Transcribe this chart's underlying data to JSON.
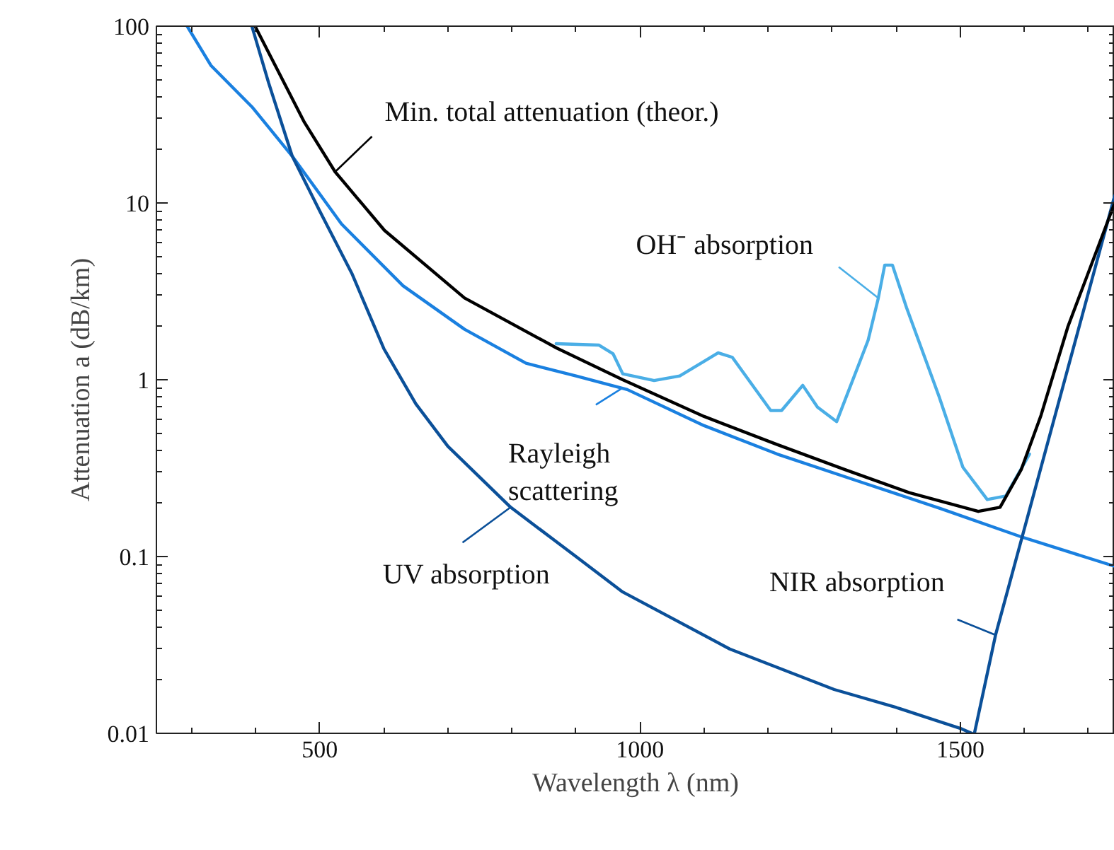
{
  "chart_data": {
    "type": "line",
    "xlabel": "Wavelength λ (nm)",
    "ylabel": "Attenuation a (dB/km)",
    "log": "y",
    "grid": false,
    "line_style": "solid",
    "marker": "none",
    "xlim": [
      245,
      1741
    ],
    "ylim": [
      0.01,
      100
    ],
    "xticks": [
      {
        "value": 300,
        "label": null
      },
      {
        "value": 400,
        "label": null
      },
      500,
      {
        "value": 600,
        "label": null
      },
      {
        "value": 700,
        "label": null
      },
      {
        "value": 800,
        "label": null
      },
      {
        "value": 900,
        "label": null
      },
      1000,
      {
        "value": 1100,
        "label": null
      },
      {
        "value": 1200,
        "label": null
      },
      {
        "value": 1300,
        "label": null
      },
      {
        "value": 1400,
        "label": null
      },
      1500,
      {
        "value": 1600,
        "label": null
      },
      {
        "value": 1700,
        "label": null
      }
    ],
    "yticks": [
      0.01,
      0.1,
      1,
      10,
      100
    ],
    "series": [
      {
        "color": "#1a80e0",
        "x": [
          293,
          330,
          394,
          457,
          534,
          630,
          726,
          822,
          900,
          980,
          1100,
          1214,
          1350,
          1469,
          1593,
          1741
        ],
        "values": [
          100,
          60,
          35,
          18.4,
          7.6,
          3.4,
          1.93,
          1.24,
          1.05,
          0.88,
          0.55,
          0.38,
          0.26,
          0.187,
          0.13,
          0.088
        ]
      },
      {
        "color": "#0b5099",
        "x": [
          394,
          420,
          457,
          500,
          550,
          600,
          650,
          700,
          798,
          900,
          973,
          1140,
          1303,
          1400,
          1502,
          1518
        ],
        "values": [
          100,
          48,
          18.4,
          9,
          4,
          1.5,
          0.73,
          0.42,
          0.19,
          0.1,
          0.063,
          0.03,
          0.0177,
          0.014,
          0.0106,
          0.01
        ]
      },
      {
        "color": "#0b5099",
        "x": [
          1522,
          1555,
          1741
        ],
        "values": [
          0.01,
          0.036,
          11
        ]
      },
      {
        "color": "#4aaee6",
        "x": [
          869,
          936,
          958,
          973,
          1022,
          1062,
          1122,
          1144,
          1204,
          1221,
          1254,
          1277,
          1307,
          1356,
          1372,
          1382,
          1394,
          1416,
          1467,
          1504,
          1542,
          1571,
          1608
        ],
        "values": [
          1.6,
          1.57,
          1.4,
          1.08,
          0.99,
          1.05,
          1.42,
          1.34,
          0.67,
          0.67,
          0.93,
          0.7,
          0.58,
          1.67,
          2.9,
          4.45,
          4.45,
          2.56,
          0.8,
          0.32,
          0.21,
          0.22,
          0.38
        ]
      },
      {
        "color": "#000000",
        "x": [
          399,
          476,
          524,
          601,
          726,
          870,
          973,
          1100,
          1214,
          1320,
          1420,
          1528,
          1562,
          1595,
          1626,
          1668,
          1741
        ],
        "values": [
          100,
          28.6,
          15,
          7,
          2.9,
          1.51,
          1.0,
          0.62,
          0.43,
          0.31,
          0.23,
          0.18,
          0.19,
          0.31,
          0.63,
          2.0,
          10
        ]
      }
    ],
    "annotations": [
      {
        "text": "Min. total attenuation (theor.)",
        "x": 524,
        "y": 15
      },
      {
        "text": "OH⁻ absorption",
        "x": 1372,
        "y": 2.9
      },
      {
        "text": "Rayleigh\nscattering",
        "x": 973,
        "y": 0.9
      },
      {
        "text": "UV absorption",
        "x": 798,
        "y": 0.19
      },
      {
        "text": "NIR absorption",
        "x": 1555,
        "y": 0.036
      }
    ]
  }
}
